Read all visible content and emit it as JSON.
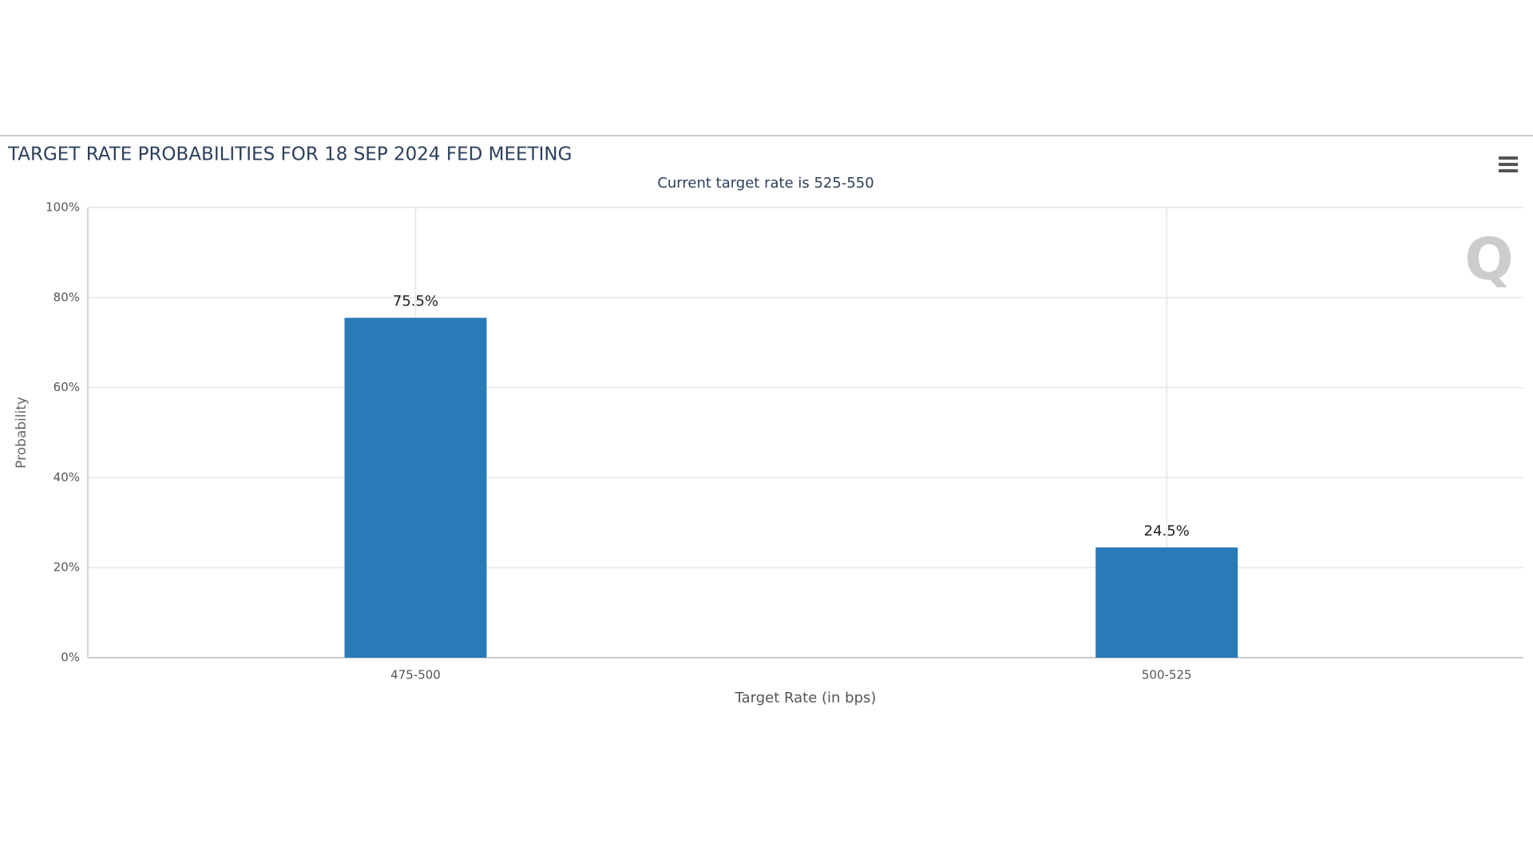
{
  "chart_data": {
    "type": "bar",
    "title": "TARGET RATE PROBABILITIES FOR 18 SEP 2024 FED MEETING",
    "subtitle": "Current target rate is 525-550",
    "x_label": "Target Rate (in bps)",
    "y_label": "Probability",
    "categories": [
      "475-500",
      "500-525"
    ],
    "values": [
      75.5,
      24.5
    ],
    "value_labels": [
      "75.5%",
      "24.5%"
    ],
    "color": "#2a7ab8",
    "ylim": [
      0,
      100
    ],
    "yticks": [
      {
        "value": 0,
        "label": "0%"
      },
      {
        "value": 20,
        "label": "20%"
      },
      {
        "value": 40,
        "label": "40%"
      },
      {
        "value": 60,
        "label": "60%"
      },
      {
        "value": 80,
        "label": "80%"
      },
      {
        "value": 100,
        "label": "100%"
      }
    ],
    "grid": true
  }
}
